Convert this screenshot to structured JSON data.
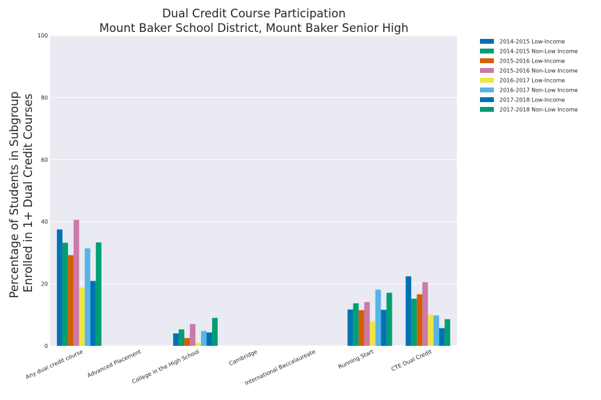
{
  "chart_data": {
    "type": "bar",
    "title": "Dual Credit Course Participation",
    "subtitle": "Mount Baker School District, Mount Baker Senior High",
    "xlabel": "",
    "ylabel": "Percentage of Students in Subgroup\nEnrolled in 1+ Dual Credit Courses",
    "ylim": [
      0,
      100
    ],
    "yticks": [
      0,
      20,
      40,
      60,
      80,
      100
    ],
    "grid": true,
    "legend": "top-right (outside plot)",
    "categories": [
      "Any dual credit course",
      "Advanced Placement",
      "College in the High School",
      "Cambridge",
      "International Baccalaureate",
      "Running Start",
      "CTE Dual Credit"
    ],
    "series": [
      {
        "name": "2014-2015 Low-Income",
        "color": "#0072b2",
        "values": [
          37.5,
          0,
          4.0,
          0,
          0,
          11.7,
          22.4
        ]
      },
      {
        "name": "2014-2015 Non-Low Income",
        "color": "#009e73",
        "values": [
          33.2,
          0,
          5.3,
          0,
          0,
          13.7,
          15.2
        ]
      },
      {
        "name": "2015-2016 Low-Income",
        "color": "#d55e00",
        "values": [
          29.2,
          0,
          2.5,
          0,
          0,
          11.5,
          16.6
        ]
      },
      {
        "name": "2015-2016 Non-Low Income",
        "color": "#cc79a7",
        "values": [
          40.6,
          0,
          7.0,
          0,
          0,
          14.1,
          20.5
        ]
      },
      {
        "name": "2016-2017 Low-Income",
        "color": "#f0e442",
        "values": [
          18.8,
          0,
          1.0,
          0,
          0,
          7.9,
          10.1
        ]
      },
      {
        "name": "2016-2017 Non-Low Income",
        "color": "#56b4e9",
        "values": [
          31.4,
          0,
          4.8,
          0,
          0,
          18.1,
          9.8
        ]
      },
      {
        "name": "2017-2018 Low-Income",
        "color": "#0072b2",
        "values": [
          20.9,
          0,
          4.3,
          0,
          0,
          11.6,
          5.7
        ]
      },
      {
        "name": "2017-2018 Non-Low Income",
        "color": "#009e73",
        "values": [
          33.3,
          0,
          9.0,
          0,
          0,
          17.1,
          8.6
        ]
      }
    ]
  }
}
